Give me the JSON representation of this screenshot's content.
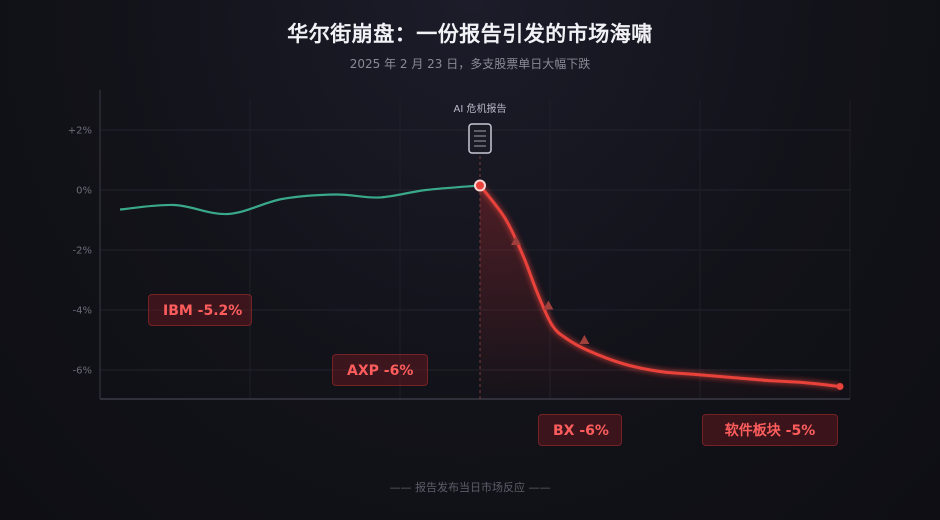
{
  "header": {
    "title": "华尔街崩盘：一份报告引发的市场海啸",
    "subtitle": "2025 年 2 月 23 日，多支股票单日大幅下跌"
  },
  "footer": {
    "caption": "—— 报告发布当日市场反应 ——"
  },
  "event": {
    "label": "AI 危机报告",
    "icon": "document-icon"
  },
  "badges": [
    {
      "id": "ibm",
      "text": "IBM -5.2%"
    },
    {
      "id": "axp",
      "text": "AXP -6%"
    },
    {
      "id": "bx",
      "text": "BX -6%"
    },
    {
      "id": "software",
      "text": "软件板块 -5%"
    }
  ],
  "colors": {
    "pre": "#3aa98a",
    "post": "#e8423a",
    "marker": "#a0403c"
  },
  "chart_data": {
    "type": "line",
    "title": "",
    "xlabel": "",
    "ylabel": "",
    "ylim": [
      -7,
      3.5
    ],
    "yticks": [
      {
        "value": 2,
        "label": "+2%"
      },
      {
        "value": 0,
        "label": "0%"
      },
      {
        "value": -2,
        "label": "-2%"
      },
      {
        "value": -4,
        "label": "-4%"
      },
      {
        "value": -6,
        "label": "-6%"
      }
    ],
    "grid": true,
    "event_index": 10,
    "series": [
      {
        "segment": "before_report",
        "x": [
          0,
          1.5,
          3,
          4.5,
          6,
          7.2,
          8.5,
          10
        ],
        "values": [
          -0.65,
          -0.5,
          -0.8,
          -0.3,
          -0.15,
          -0.25,
          0.0,
          0.15
        ]
      },
      {
        "segment": "after_report",
        "x": [
          10,
          10.7,
          11.2,
          11.6,
          12,
          12.4,
          13,
          14,
          15,
          16,
          17,
          18,
          19,
          20
        ],
        "values": [
          0.15,
          -0.95,
          -2.2,
          -3.45,
          -4.5,
          -4.95,
          -5.35,
          -5.8,
          -6.05,
          -6.15,
          -6.25,
          -6.35,
          -6.42,
          -6.55
        ]
      }
    ],
    "markers": [
      {
        "x": 11.0,
        "value": -1.7
      },
      {
        "x": 11.9,
        "value": -3.85
      },
      {
        "x": 12.9,
        "value": -5.0
      }
    ],
    "xlim": [
      0,
      20
    ]
  }
}
